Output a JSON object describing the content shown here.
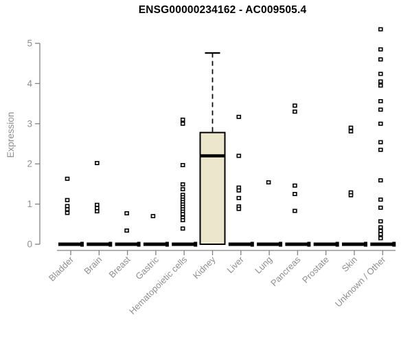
{
  "title": "ENSG00000234162 - AC009505.4",
  "ylabel": "Expression",
  "colors": {
    "box_fill": "#ECE7CC",
    "line": "#000000",
    "axis": "#818181",
    "label_text": "#8e8e8e",
    "title_text": "#000000",
    "point_fill": "#FFFFFF"
  },
  "chart_data": {
    "type": "boxplot",
    "title": "ENSG00000234162 - AC009505.4",
    "xlabel": "",
    "ylabel": "Expression",
    "ylim": [
      0,
      5.4
    ],
    "y_ticks": [
      0,
      1,
      2,
      3,
      4,
      5
    ],
    "grid": false,
    "legend_position": "none",
    "categories": [
      "Bladder",
      "Brain",
      "Breast",
      "Gastric",
      "Hematopoietic cells",
      "Kidney",
      "Liver",
      "Lung",
      "Pancreas",
      "Prostate",
      "Skin",
      "Unknown / Other"
    ],
    "groups": [
      {
        "label": "Bladder",
        "q1": 0,
        "median": 0,
        "q3": 0,
        "whisker_low": 0,
        "whisker_high": 0,
        "points": [
          1.63,
          1.1,
          0.95,
          0.87,
          0.78
        ]
      },
      {
        "label": "Brain",
        "q1": 0,
        "median": 0,
        "q3": 0,
        "whisker_low": 0,
        "whisker_high": 0,
        "points": [
          2.02,
          0.98,
          0.9,
          0.82
        ]
      },
      {
        "label": "Breast",
        "q1": 0,
        "median": 0,
        "q3": 0,
        "whisker_low": 0,
        "whisker_high": 0,
        "points": [
          0.77,
          0.34
        ]
      },
      {
        "label": "Gastric",
        "q1": 0,
        "median": 0,
        "q3": 0,
        "whisker_low": 0,
        "whisker_high": 0,
        "points": [
          0.7
        ]
      },
      {
        "label": "Hematopoietic cells",
        "q1": 0,
        "median": 0,
        "q3": 0,
        "whisker_low": 0,
        "whisker_high": 0,
        "points": [
          3.1,
          3.0,
          1.97,
          1.49,
          1.37,
          1.23,
          1.17,
          1.11,
          1.05,
          0.99,
          0.93,
          0.87,
          0.81,
          0.75,
          0.66,
          0.6,
          0.39
        ]
      },
      {
        "label": "Kidney",
        "q1": 0,
        "median": 2.2,
        "q3": 2.78,
        "whisker_low": 0,
        "whisker_high": 4.76,
        "points": []
      },
      {
        "label": "Liver",
        "q1": 0,
        "median": 0,
        "q3": 0,
        "whisker_low": 0,
        "whisker_high": 0,
        "points": [
          3.17,
          2.2,
          1.41,
          1.34,
          1.15,
          0.94,
          0.88
        ]
      },
      {
        "label": "Lung",
        "q1": 0,
        "median": 0,
        "q3": 0,
        "whisker_low": 0,
        "whisker_high": 0,
        "points": [
          1.54
        ]
      },
      {
        "label": "Pancreas",
        "q1": 0,
        "median": 0,
        "q3": 0,
        "whisker_low": 0,
        "whisker_high": 0,
        "points": [
          3.45,
          3.3,
          1.46,
          1.25,
          0.83
        ]
      },
      {
        "label": "Prostate",
        "q1": 0,
        "median": 0,
        "q3": 0,
        "whisker_low": 0,
        "whisker_high": 0,
        "points": []
      },
      {
        "label": "Skin",
        "q1": 0,
        "median": 0,
        "q3": 0,
        "whisker_low": 0,
        "whisker_high": 0,
        "points": [
          2.9,
          2.81,
          1.29,
          1.22
        ]
      },
      {
        "label": "Unknown / Other",
        "q1": 0,
        "median": 0,
        "q3": 0,
        "whisker_low": 0,
        "whisker_high": 0,
        "points": [
          5.35,
          4.85,
          4.6,
          4.24,
          4.05,
          3.95,
          3.56,
          3.35,
          3.0,
          2.54,
          2.35,
          1.59,
          1.11,
          0.91,
          0.57,
          0.42,
          0.33,
          0.25,
          0.15
        ]
      }
    ]
  }
}
